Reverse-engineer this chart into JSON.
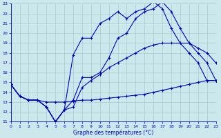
{
  "xlabel": "Graphe des températures (°C)",
  "background_color": "#cce8ec",
  "line_color": "#0000bb",
  "grid_color": "#aacccc",
  "xlim": [
    0,
    23
  ],
  "ylim": [
    11,
    23
  ],
  "xticks": [
    0,
    1,
    2,
    3,
    4,
    5,
    6,
    7,
    8,
    9,
    10,
    11,
    12,
    13,
    14,
    15,
    16,
    17,
    18,
    19,
    20,
    21,
    22,
    23
  ],
  "yticks": [
    11,
    12,
    13,
    14,
    15,
    16,
    17,
    18,
    19,
    20,
    21,
    22,
    23
  ],
  "curve1": {
    "x": [
      0,
      1,
      2,
      3,
      4,
      5,
      6,
      7,
      8,
      9,
      10,
      11,
      12,
      13,
      14,
      15,
      16,
      17,
      18,
      19,
      20,
      21,
      22,
      23
    ],
    "y": [
      14.8,
      13.6,
      13.2,
      13.2,
      12.5,
      11.0,
      12.2,
      17.8,
      19.5,
      19.5,
      21.0,
      21.5,
      22.2,
      21.5,
      22.2,
      22.5,
      23.2,
      22.5,
      20.5,
      19.0,
      18.0,
      17.0,
      15.2,
      15.2
    ]
  },
  "curve2": {
    "x": [
      0,
      1,
      2,
      3,
      4,
      5,
      6,
      7,
      8,
      9,
      10,
      11,
      12,
      13,
      14,
      15,
      16,
      17,
      18,
      19,
      20,
      21,
      22,
      23
    ],
    "y": [
      14.8,
      13.6,
      13.2,
      13.2,
      12.5,
      11.0,
      12.2,
      13.2,
      15.5,
      15.5,
      16.0,
      17.5,
      19.5,
      20.0,
      21.5,
      22.2,
      22.5,
      23.2,
      22.2,
      20.5,
      19.0,
      18.0,
      17.0,
      15.2
    ]
  },
  "curve3": {
    "x": [
      0,
      1,
      2,
      3,
      4,
      5,
      6,
      7,
      8,
      9,
      10,
      11,
      12,
      13,
      14,
      15,
      16,
      17,
      18,
      19,
      20,
      21,
      22,
      23
    ],
    "y": [
      14.8,
      13.6,
      13.2,
      13.2,
      12.5,
      11.0,
      12.2,
      12.5,
      14.5,
      15.2,
      15.8,
      16.5,
      17.0,
      17.5,
      18.0,
      18.5,
      18.8,
      19.0,
      19.0,
      19.0,
      19.0,
      18.5,
      18.0,
      17.0
    ]
  },
  "curve4": {
    "x": [
      0,
      1,
      2,
      3,
      4,
      5,
      6,
      7,
      8,
      9,
      10,
      11,
      12,
      13,
      14,
      15,
      16,
      17,
      18,
      19,
      20,
      21,
      22,
      23
    ],
    "y": [
      14.8,
      13.6,
      13.2,
      13.2,
      13.0,
      13.0,
      13.0,
      13.1,
      13.2,
      13.2,
      13.3,
      13.4,
      13.5,
      13.6,
      13.7,
      13.8,
      14.0,
      14.2,
      14.4,
      14.6,
      14.8,
      15.0,
      15.2,
      15.2
    ]
  }
}
